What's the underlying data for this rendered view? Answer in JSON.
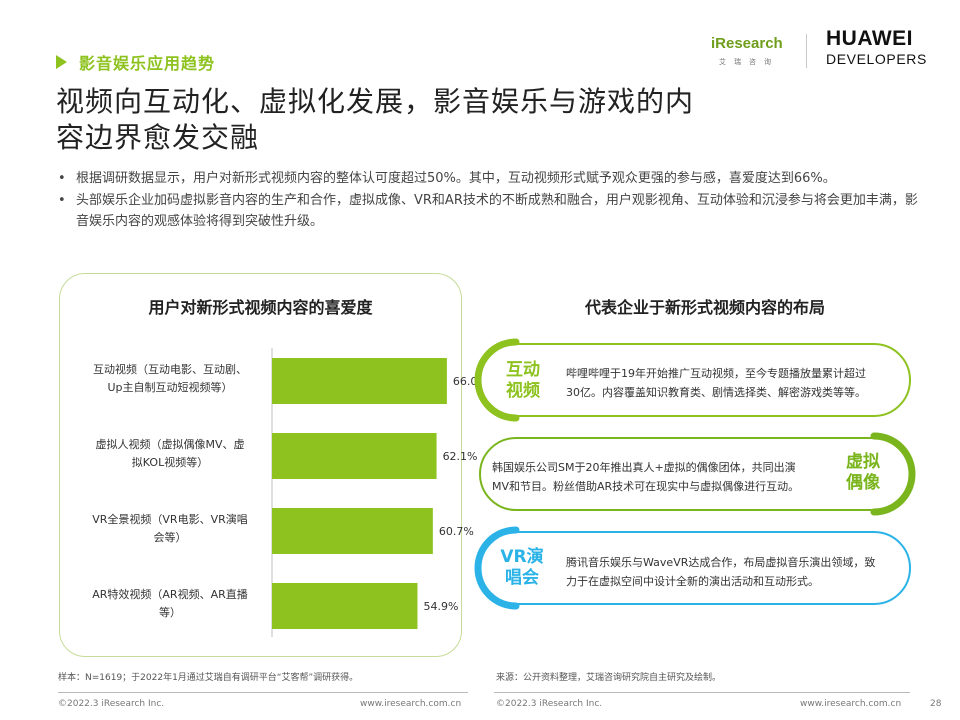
{
  "header": {
    "section": "影音娱乐应用趋势",
    "iresearch_logo": "iResearch",
    "iresearch_sub": "艾瑞咨询",
    "huawei_line1": "HUAWEI",
    "huawei_line2": "DEVELOPERS",
    "accent_color": "#8dc21f"
  },
  "title": {
    "line1": "视频向互动化、虚拟化发展，影音娱乐与游戏的内",
    "line2": "容边界愈发交融"
  },
  "bullets": [
    {
      "symbol": "•",
      "text": "根据调研数据显示，用户对新形式视频内容的整体认可度超过50%。其中，互动视频形式赋予观众更强的参与感，喜爱度达到66%。"
    },
    {
      "symbol": "•",
      "text": "头部娱乐企业加码虚拟影音内容的生产和合作，虚拟成像、VR和AR技术的不断成熟和融合，用户观影视角、互动体验和沉浸参与将会更加丰满，影音娱乐内容的观感体验将得到突破性升级。"
    }
  ],
  "chart_data": {
    "type": "bar",
    "orientation": "horizontal",
    "title": "用户对新形式视频内容的喜爱度",
    "categories": [
      [
        "互动视频（互动电影、互动剧、",
        "Up主自制互动短视频等）"
      ],
      [
        "虚拟人视频（虚拟偶像MV、虚",
        "拟KOL视频等）"
      ],
      [
        "VR全景视频（VR电影、VR演唱",
        "会等）"
      ],
      [
        "AR特效视频（AR视频、AR直播",
        "等）"
      ]
    ],
    "values": [
      66.0,
      62.1,
      60.7,
      54.9
    ],
    "value_labels": [
      "66.0%",
      "62.1%",
      "60.7%",
      "54.9%"
    ],
    "xlim": [
      0,
      100
    ],
    "bar_color": "#8dc21f",
    "grid": false,
    "legend": false
  },
  "right_panel": {
    "title": "代表企业于新形式视频内容的布局",
    "cards": [
      {
        "label_line1": "互动",
        "label_line2": "视频",
        "text_line1": "哔哩哔哩于19年开始推广互动视频，至今专题播放量累计超过",
        "text_line2": "30亿。内容覆盖知识教育类、剧情选择类、解密游戏类等等。",
        "color": "#8dc21f"
      },
      {
        "label_line1": "虚拟",
        "label_line2": "偶像",
        "text_line1": "韩国娱乐公司SM于20年推出真人+虚拟的偶像团体，共同出演",
        "text_line2": "MV和节目。粉丝借助AR技术可在现实中与虚拟偶像进行互动。",
        "color": "#7ab51d"
      },
      {
        "label_line1": "VR演",
        "label_line2": "唱会",
        "text_line1": "腾讯音乐娱乐与WaveVR达成合作，布局虚拟音乐演出领域，致",
        "text_line2": "力于在虚拟空间中设计全新的演出活动和互动形式。",
        "color": "#2bb3e8"
      }
    ]
  },
  "notes": {
    "sample": "样本：N=1619；于2022年1月通过艾瑞自有调研平台“艾客帮”调研获得。",
    "source": "来源：公开资料整理，艾瑞咨询研究院自主研究及绘制。"
  },
  "footer": {
    "copyright_left": "©2022.3 iResearch Inc.",
    "url_left": "www.iresearch.com.cn",
    "copyright_right": "©2022.3 iResearch Inc.",
    "url_right": "www.iresearch.com.cn",
    "page_number": "28"
  }
}
